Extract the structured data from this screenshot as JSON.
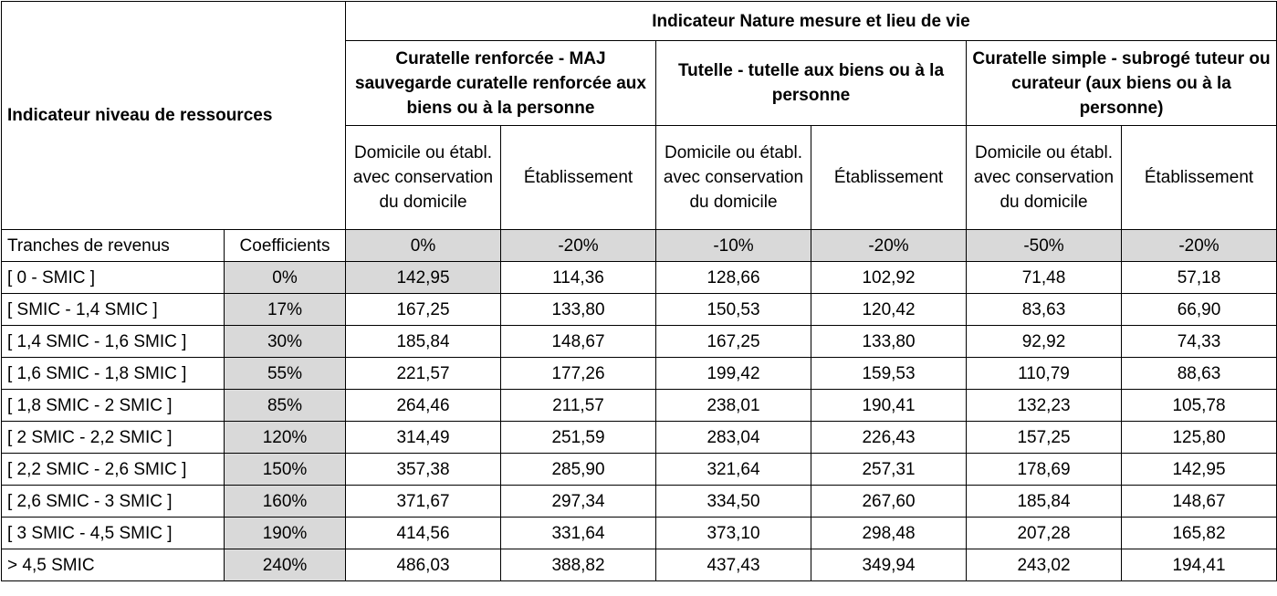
{
  "header": {
    "resource_indicator": "Indicateur niveau de ressources",
    "nature_indicator": "Indicateur Nature mesure et lieu de vie",
    "measures": [
      {
        "label": "Curatelle renforcée - MAJ sauvegarde curatelle renforcée aux biens ou à la personne"
      },
      {
        "label": "Tutelle - tutelle aux biens ou à la personne"
      },
      {
        "label": "Curatelle simple - subrogé tuteur ou curateur (aux biens ou à la personne)"
      }
    ],
    "places": [
      "Domicile ou établ. avec conservation du domicile",
      "Établissement",
      "Domicile ou établ. avec conservation du domicile",
      "Établissement",
      "Domicile ou établ. avec conservation du domicile",
      "Établissement"
    ],
    "brackets_label": "Tranches de revenus",
    "coefficients_label": "Coefficients",
    "place_coefficients": [
      "0%",
      "-20%",
      "-10%",
      "-20%",
      "-50%",
      "-20%"
    ]
  },
  "rows": [
    {
      "bracket": "[ 0 - SMIC ]",
      "coef": "0%",
      "values": [
        "142,95",
        "114,36",
        "128,66",
        "102,92",
        "71,48",
        "57,18"
      ]
    },
    {
      "bracket": "[ SMIC - 1,4 SMIC ]",
      "coef": "17%",
      "values": [
        "167,25",
        "133,80",
        "150,53",
        "120,42",
        "83,63",
        "66,90"
      ]
    },
    {
      "bracket": "[ 1,4 SMIC - 1,6 SMIC ]",
      "coef": "30%",
      "values": [
        "185,84",
        "148,67",
        "167,25",
        "133,80",
        "92,92",
        "74,33"
      ]
    },
    {
      "bracket": "[ 1,6 SMIC - 1,8 SMIC ]",
      "coef": "55%",
      "values": [
        "221,57",
        "177,26",
        "199,42",
        "159,53",
        "110,79",
        "88,63"
      ]
    },
    {
      "bracket": "[ 1,8 SMIC - 2 SMIC ]",
      "coef": "85%",
      "values": [
        "264,46",
        "211,57",
        "238,01",
        "190,41",
        "132,23",
        "105,78"
      ]
    },
    {
      "bracket": "[ 2 SMIC - 2,2 SMIC ]",
      "coef": "120%",
      "values": [
        "314,49",
        "251,59",
        "283,04",
        "226,43",
        "157,25",
        "125,80"
      ]
    },
    {
      "bracket": "[ 2,2 SMIC - 2,6 SMIC ]",
      "coef": "150%",
      "values": [
        "357,38",
        "285,90",
        "321,64",
        "257,31",
        "178,69",
        "142,95"
      ]
    },
    {
      "bracket": "[ 2,6 SMIC - 3 SMIC ]",
      "coef": "160%",
      "values": [
        "371,67",
        "297,34",
        "334,50",
        "267,60",
        "185,84",
        "148,67"
      ]
    },
    {
      "bracket": "[ 3 SMIC - 4,5 SMIC ]",
      "coef": "190%",
      "values": [
        "414,56",
        "331,64",
        "373,10",
        "298,48",
        "207,28",
        "165,82"
      ]
    },
    {
      "bracket": "> 4,5 SMIC",
      "coef": "240%",
      "values": [
        "486,03",
        "388,82",
        "437,43",
        "349,94",
        "243,02",
        "194,41"
      ]
    }
  ]
}
